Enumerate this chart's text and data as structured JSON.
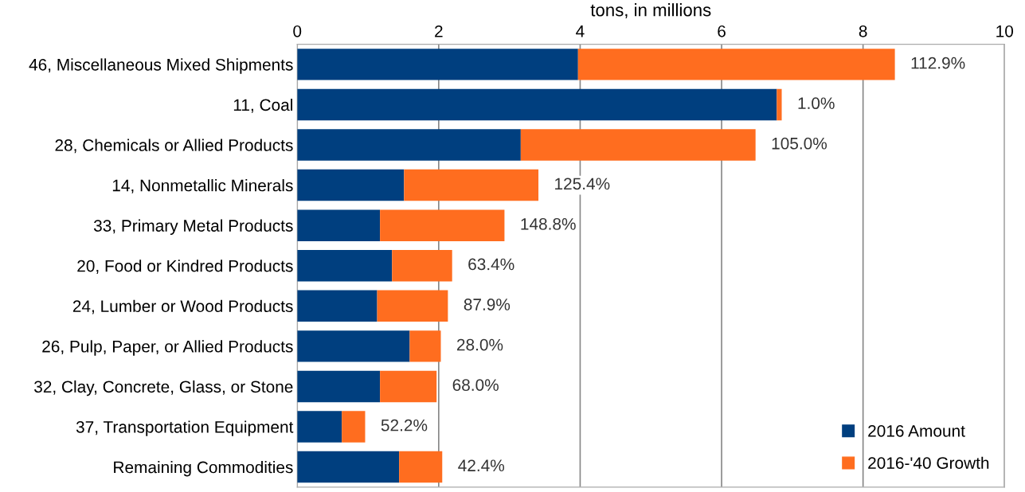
{
  "chart_data": {
    "type": "bar",
    "orientation": "horizontal",
    "stacked": true,
    "xlabel": "tons, in millions",
    "categories": [
      "46, Miscellaneous Mixed Shipments",
      "11, Coal",
      "28, Chemicals or Allied Products",
      "14, Nonmetallic Minerals",
      "33, Primary Metal Products",
      "20, Food or Kindred Products",
      "24, Lumber or Wood Products",
      "26, Pulp, Paper, or Allied Products",
      "32, Clay, Concrete, Glass, or Stone",
      "37, Transportation Equipment",
      "Remaining Commodities"
    ],
    "series": [
      {
        "name": "2016 Amount",
        "color": "#003f7f",
        "values": [
          3.97,
          6.78,
          3.16,
          1.51,
          1.17,
          1.34,
          1.13,
          1.59,
          1.17,
          0.63,
          1.44
        ]
      },
      {
        "name": "2016-'40 Growth",
        "color": "#ff6d1f",
        "values": [
          4.48,
          0.07,
          3.32,
          1.9,
          1.76,
          0.85,
          1.0,
          0.44,
          0.8,
          0.33,
          0.61
        ]
      }
    ],
    "annotations": [
      {
        "text": "112.9%",
        "x": 8.45,
        "y": "46, Miscellaneous Mixed Shipments"
      },
      {
        "text": "1.0%",
        "x": 6.85,
        "y": "11, Coal"
      },
      {
        "text": "105.0%",
        "x": 6.48,
        "y": "28, Chemicals or Allied Products"
      },
      {
        "text": "125.4%",
        "x": 3.41,
        "y": "14, Nonmetallic Minerals"
      },
      {
        "text": "148.8%",
        "x": 2.93,
        "y": "33, Primary Metal Products"
      },
      {
        "text": "63.4%",
        "x": 2.19,
        "y": "20, Food or Kindred Products"
      },
      {
        "text": "87.9%",
        "x": 2.13,
        "y": "24, Lumber or Wood Products"
      },
      {
        "text": "28.0%",
        "x": 2.03,
        "y": "26, Pulp, Paper, or Allied Products"
      },
      {
        "text": "68.0%",
        "x": 1.97,
        "y": "32, Clay, Concrete, Glass, or Stone"
      },
      {
        "text": "52.2%",
        "x": 0.96,
        "y": "37, Transportation Equipment"
      },
      {
        "text": "42.4%",
        "x": 2.05,
        "y": "Remaining Commodities"
      }
    ],
    "xlim": [
      0,
      10
    ],
    "xticks": [
      0,
      2,
      4,
      6,
      8,
      10
    ],
    "grid": "x",
    "legend": "bottom right"
  }
}
